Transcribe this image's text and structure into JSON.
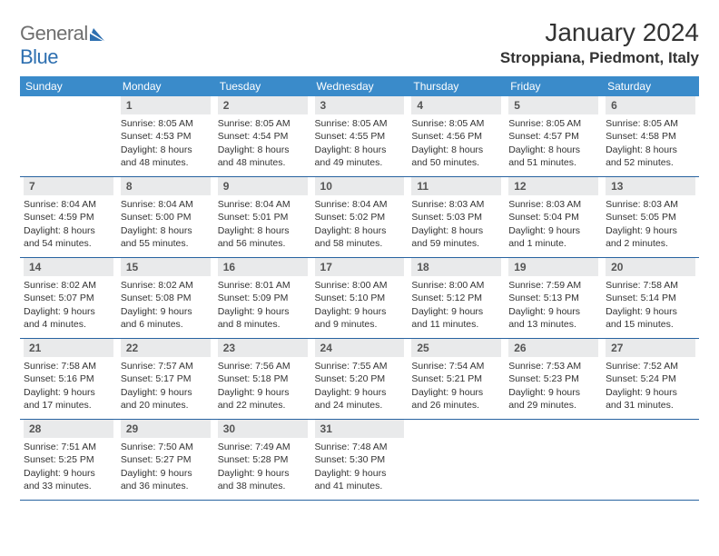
{
  "logo": {
    "word1": "General",
    "word2": "Blue"
  },
  "title": "January 2024",
  "location": "Stroppiana, Piedmont, Italy",
  "colors": {
    "header_bg": "#3a8bca",
    "header_text": "#ffffff",
    "row_border": "#2863a0",
    "daynum_bg": "#e9eaeb",
    "logo_gray": "#6f6f6f",
    "logo_blue": "#2d6fb0"
  },
  "day_names": [
    "Sunday",
    "Monday",
    "Tuesday",
    "Wednesday",
    "Thursday",
    "Friday",
    "Saturday"
  ],
  "weeks": [
    [
      {
        "empty": true
      },
      {
        "n": "1",
        "sr": "Sunrise: 8:05 AM",
        "ss": "Sunset: 4:53 PM",
        "d1": "Daylight: 8 hours",
        "d2": "and 48 minutes."
      },
      {
        "n": "2",
        "sr": "Sunrise: 8:05 AM",
        "ss": "Sunset: 4:54 PM",
        "d1": "Daylight: 8 hours",
        "d2": "and 48 minutes."
      },
      {
        "n": "3",
        "sr": "Sunrise: 8:05 AM",
        "ss": "Sunset: 4:55 PM",
        "d1": "Daylight: 8 hours",
        "d2": "and 49 minutes."
      },
      {
        "n": "4",
        "sr": "Sunrise: 8:05 AM",
        "ss": "Sunset: 4:56 PM",
        "d1": "Daylight: 8 hours",
        "d2": "and 50 minutes."
      },
      {
        "n": "5",
        "sr": "Sunrise: 8:05 AM",
        "ss": "Sunset: 4:57 PM",
        "d1": "Daylight: 8 hours",
        "d2": "and 51 minutes."
      },
      {
        "n": "6",
        "sr": "Sunrise: 8:05 AM",
        "ss": "Sunset: 4:58 PM",
        "d1": "Daylight: 8 hours",
        "d2": "and 52 minutes."
      }
    ],
    [
      {
        "n": "7",
        "sr": "Sunrise: 8:04 AM",
        "ss": "Sunset: 4:59 PM",
        "d1": "Daylight: 8 hours",
        "d2": "and 54 minutes."
      },
      {
        "n": "8",
        "sr": "Sunrise: 8:04 AM",
        "ss": "Sunset: 5:00 PM",
        "d1": "Daylight: 8 hours",
        "d2": "and 55 minutes."
      },
      {
        "n": "9",
        "sr": "Sunrise: 8:04 AM",
        "ss": "Sunset: 5:01 PM",
        "d1": "Daylight: 8 hours",
        "d2": "and 56 minutes."
      },
      {
        "n": "10",
        "sr": "Sunrise: 8:04 AM",
        "ss": "Sunset: 5:02 PM",
        "d1": "Daylight: 8 hours",
        "d2": "and 58 minutes."
      },
      {
        "n": "11",
        "sr": "Sunrise: 8:03 AM",
        "ss": "Sunset: 5:03 PM",
        "d1": "Daylight: 8 hours",
        "d2": "and 59 minutes."
      },
      {
        "n": "12",
        "sr": "Sunrise: 8:03 AM",
        "ss": "Sunset: 5:04 PM",
        "d1": "Daylight: 9 hours",
        "d2": "and 1 minute."
      },
      {
        "n": "13",
        "sr": "Sunrise: 8:03 AM",
        "ss": "Sunset: 5:05 PM",
        "d1": "Daylight: 9 hours",
        "d2": "and 2 minutes."
      }
    ],
    [
      {
        "n": "14",
        "sr": "Sunrise: 8:02 AM",
        "ss": "Sunset: 5:07 PM",
        "d1": "Daylight: 9 hours",
        "d2": "and 4 minutes."
      },
      {
        "n": "15",
        "sr": "Sunrise: 8:02 AM",
        "ss": "Sunset: 5:08 PM",
        "d1": "Daylight: 9 hours",
        "d2": "and 6 minutes."
      },
      {
        "n": "16",
        "sr": "Sunrise: 8:01 AM",
        "ss": "Sunset: 5:09 PM",
        "d1": "Daylight: 9 hours",
        "d2": "and 8 minutes."
      },
      {
        "n": "17",
        "sr": "Sunrise: 8:00 AM",
        "ss": "Sunset: 5:10 PM",
        "d1": "Daylight: 9 hours",
        "d2": "and 9 minutes."
      },
      {
        "n": "18",
        "sr": "Sunrise: 8:00 AM",
        "ss": "Sunset: 5:12 PM",
        "d1": "Daylight: 9 hours",
        "d2": "and 11 minutes."
      },
      {
        "n": "19",
        "sr": "Sunrise: 7:59 AM",
        "ss": "Sunset: 5:13 PM",
        "d1": "Daylight: 9 hours",
        "d2": "and 13 minutes."
      },
      {
        "n": "20",
        "sr": "Sunrise: 7:58 AM",
        "ss": "Sunset: 5:14 PM",
        "d1": "Daylight: 9 hours",
        "d2": "and 15 minutes."
      }
    ],
    [
      {
        "n": "21",
        "sr": "Sunrise: 7:58 AM",
        "ss": "Sunset: 5:16 PM",
        "d1": "Daylight: 9 hours",
        "d2": "and 17 minutes."
      },
      {
        "n": "22",
        "sr": "Sunrise: 7:57 AM",
        "ss": "Sunset: 5:17 PM",
        "d1": "Daylight: 9 hours",
        "d2": "and 20 minutes."
      },
      {
        "n": "23",
        "sr": "Sunrise: 7:56 AM",
        "ss": "Sunset: 5:18 PM",
        "d1": "Daylight: 9 hours",
        "d2": "and 22 minutes."
      },
      {
        "n": "24",
        "sr": "Sunrise: 7:55 AM",
        "ss": "Sunset: 5:20 PM",
        "d1": "Daylight: 9 hours",
        "d2": "and 24 minutes."
      },
      {
        "n": "25",
        "sr": "Sunrise: 7:54 AM",
        "ss": "Sunset: 5:21 PM",
        "d1": "Daylight: 9 hours",
        "d2": "and 26 minutes."
      },
      {
        "n": "26",
        "sr": "Sunrise: 7:53 AM",
        "ss": "Sunset: 5:23 PM",
        "d1": "Daylight: 9 hours",
        "d2": "and 29 minutes."
      },
      {
        "n": "27",
        "sr": "Sunrise: 7:52 AM",
        "ss": "Sunset: 5:24 PM",
        "d1": "Daylight: 9 hours",
        "d2": "and 31 minutes."
      }
    ],
    [
      {
        "n": "28",
        "sr": "Sunrise: 7:51 AM",
        "ss": "Sunset: 5:25 PM",
        "d1": "Daylight: 9 hours",
        "d2": "and 33 minutes."
      },
      {
        "n": "29",
        "sr": "Sunrise: 7:50 AM",
        "ss": "Sunset: 5:27 PM",
        "d1": "Daylight: 9 hours",
        "d2": "and 36 minutes."
      },
      {
        "n": "30",
        "sr": "Sunrise: 7:49 AM",
        "ss": "Sunset: 5:28 PM",
        "d1": "Daylight: 9 hours",
        "d2": "and 38 minutes."
      },
      {
        "n": "31",
        "sr": "Sunrise: 7:48 AM",
        "ss": "Sunset: 5:30 PM",
        "d1": "Daylight: 9 hours",
        "d2": "and 41 minutes."
      },
      {
        "empty": true
      },
      {
        "empty": true
      },
      {
        "empty": true
      }
    ]
  ]
}
